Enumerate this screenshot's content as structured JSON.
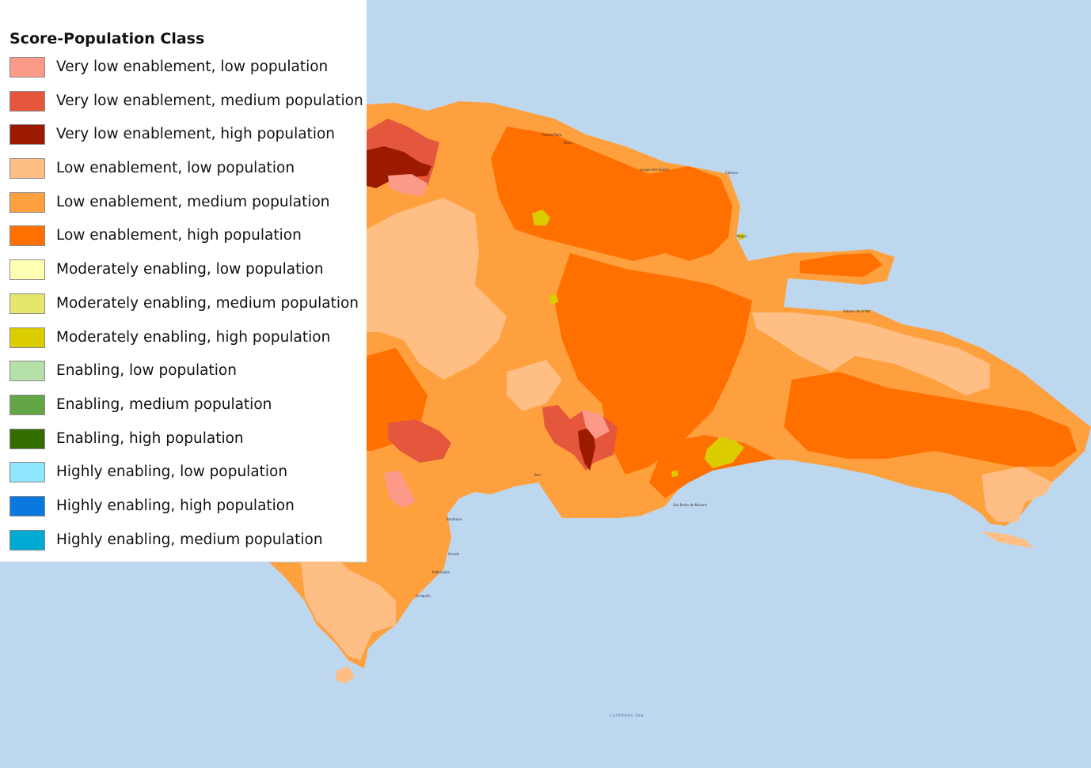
{
  "legend": {
    "title": "Score-Population Class",
    "items": [
      {
        "label": "Very low enablement, low population",
        "color": "#fb9a89"
      },
      {
        "label": "Very low enablement, medium population",
        "color": "#e5573d"
      },
      {
        "label": "Very low enablement, high population",
        "color": "#9b1a00"
      },
      {
        "label": "Low enablement, low population",
        "color": "#ffbe84"
      },
      {
        "label": "Low enablement, medium population",
        "color": "#ffa03e"
      },
      {
        "label": "Low enablement, high population",
        "color": "#ff7000"
      },
      {
        "label": "Moderately enabling, low population",
        "color": "#ffffb4"
      },
      {
        "label": "Moderately enabling, medium population",
        "color": "#e6e66e"
      },
      {
        "label": "Moderately enabling, high population",
        "color": "#dccd00"
      },
      {
        "label": "Enabling, low population",
        "color": "#b5e0a8"
      },
      {
        "label": "Enabling, medium population",
        "color": "#64a546"
      },
      {
        "label": "Enabling, high population",
        "color": "#346e00"
      },
      {
        "label": "Highly enabling, low population",
        "color": "#8ee6ff"
      },
      {
        "label": "Highly enabling, high population",
        "color": "#0a78dc"
      },
      {
        "label": "Highly enabling, medium population",
        "color": "#00aad2"
      }
    ]
  },
  "map": {
    "sea_color": "#bdd7ef",
    "sea_label": "Caribbean Sea",
    "places": [
      "Puerto Plata",
      "Moca",
      "Gaspar Hernández",
      "Cabrera",
      "Nagua",
      "Sabana de la Mar",
      "Baní",
      "San Pedro de Macorís",
      "Barahona",
      "Oviedo",
      "Pedernales",
      "Enriquillo"
    ]
  }
}
